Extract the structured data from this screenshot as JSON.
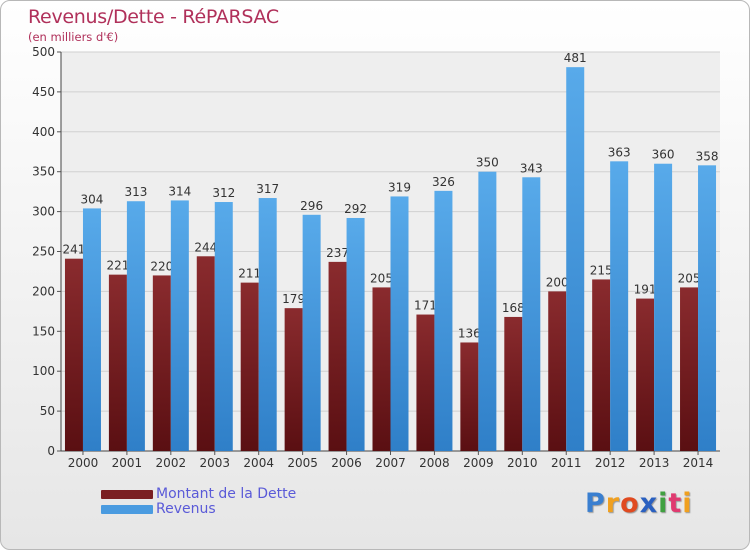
{
  "title": "Revenus/Dette - RéPARSAC",
  "subtitle": "(en milliers d'€)",
  "colors": {
    "debt": "#7a1f22",
    "revenue": "#4a9be0",
    "title": "#b0305a",
    "legend_text": "#5a5ad8"
  },
  "legend": {
    "items": [
      {
        "label": "Montant de la Dette",
        "color": "#7a1f22"
      },
      {
        "label": "Revenus",
        "color": "#4a9be0"
      }
    ]
  },
  "logo": {
    "letters": [
      "P",
      "r",
      "o",
      "x",
      "i",
      "t",
      "i"
    ],
    "colors": [
      "#3a7fd0",
      "#f0a020",
      "#e04a20",
      "#2a60c0",
      "#40a040",
      "#e03a70",
      "#f0a020"
    ]
  },
  "chart_data": {
    "type": "bar",
    "categories": [
      "2000",
      "2001",
      "2002",
      "2003",
      "2004",
      "2005",
      "2006",
      "2007",
      "2008",
      "2009",
      "2010",
      "2011",
      "2012",
      "2013",
      "2014"
    ],
    "series": [
      {
        "name": "Montant de la Dette",
        "values": [
          241,
          221,
          220,
          244,
          211,
          179,
          237,
          205,
          171,
          136,
          168,
          200,
          215,
          191,
          205
        ]
      },
      {
        "name": "Revenus",
        "values": [
          304,
          313,
          314,
          312,
          317,
          296,
          292,
          319,
          326,
          350,
          343,
          481,
          363,
          360,
          358
        ]
      }
    ],
    "yticks": [
      0,
      50,
      100,
      150,
      200,
      250,
      300,
      350,
      400,
      450,
      500
    ],
    "ylim": [
      0,
      500
    ],
    "grid": true,
    "legend_position": "bottom-left"
  }
}
